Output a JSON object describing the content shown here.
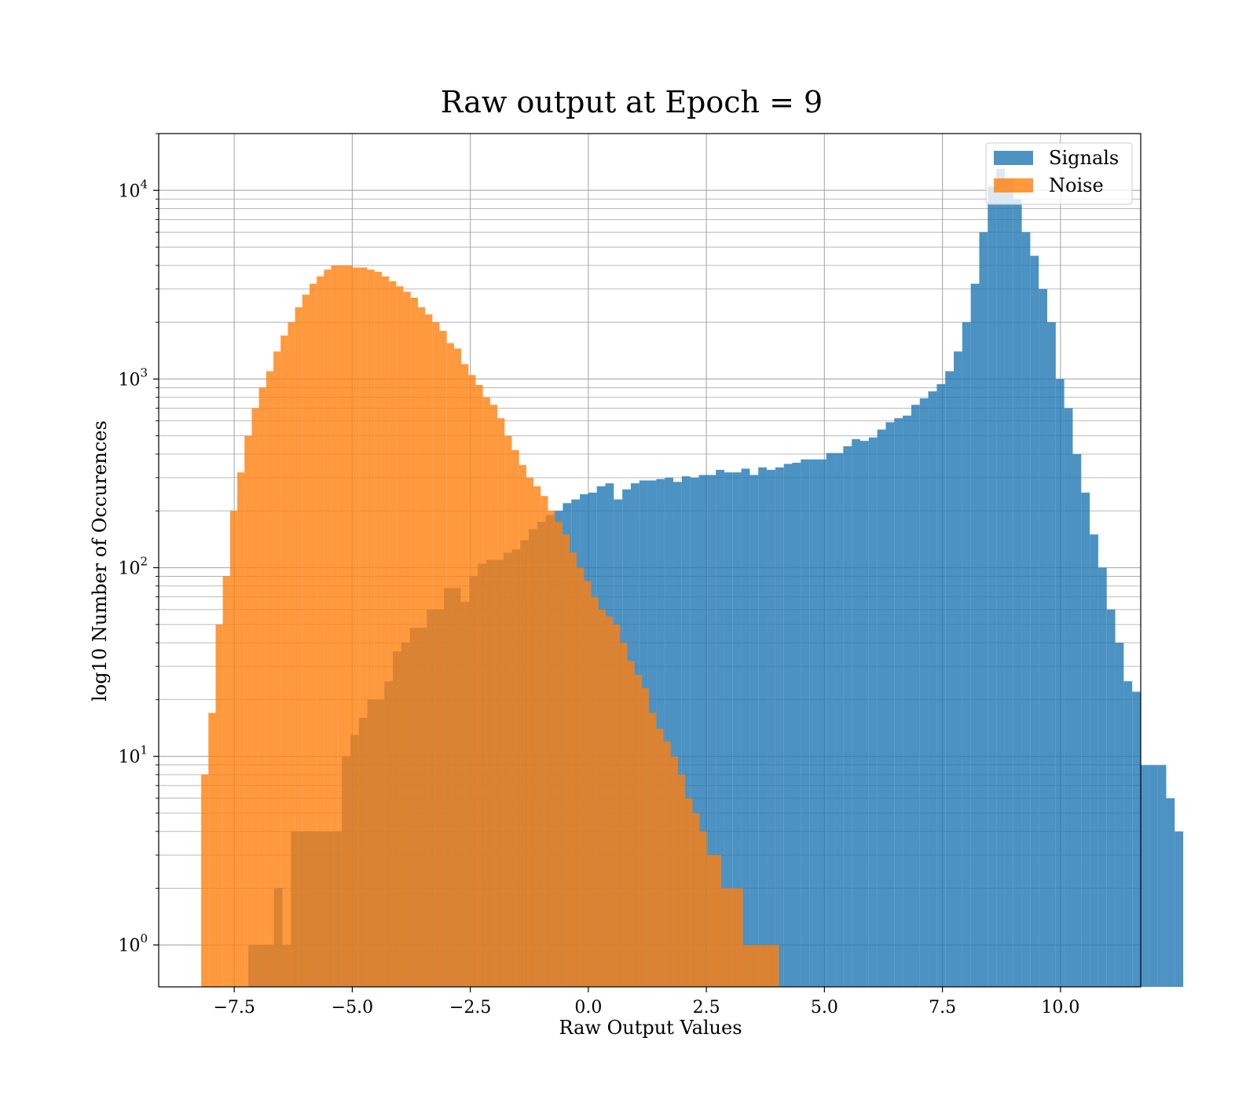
{
  "chart_data": {
    "type": "bar",
    "title": "Raw output at Epoch = 9",
    "xlabel": "Raw Output Values",
    "ylabel": "log10 Number of Occurences",
    "xlim": [
      -9.1,
      11.7
    ],
    "ylim": [
      0.6,
      20000
    ],
    "y_scale": "log",
    "grid": true,
    "legend_position": "top-right",
    "x_ticks": [
      {
        "value": -7.5,
        "label": "−7.5"
      },
      {
        "value": -5.0,
        "label": "−5.0"
      },
      {
        "value": -2.5,
        "label": "−2.5"
      },
      {
        "value": 0.0,
        "label": "0.0"
      },
      {
        "value": 2.5,
        "label": "2.5"
      },
      {
        "value": 5.0,
        "label": "5.0"
      },
      {
        "value": 7.5,
        "label": "7.5"
      },
      {
        "value": 10.0,
        "label": "10.0"
      }
    ],
    "y_ticks": [
      {
        "value": 1,
        "base": "10",
        "exp": "0"
      },
      {
        "value": 10,
        "base": "10",
        "exp": "1"
      },
      {
        "value": 100,
        "base": "10",
        "exp": "2"
      },
      {
        "value": 1000,
        "base": "10",
        "exp": "3"
      },
      {
        "value": 10000,
        "base": "10",
        "exp": "4"
      }
    ],
    "series": [
      {
        "name": "Signals",
        "color": "#1f77b4",
        "alpha": 0.8,
        "bin_start": -7.2,
        "bin_width": 0.18,
        "values": [
          1,
          1,
          1,
          2,
          1,
          4,
          4,
          4,
          4,
          4,
          4,
          10,
          13,
          16,
          20,
          20,
          25,
          36,
          40,
          48,
          48,
          60,
          60,
          78,
          78,
          66,
          90,
          105,
          110,
          110,
          120,
          125,
          140,
          160,
          175,
          190,
          200,
          220,
          230,
          245,
          250,
          270,
          280,
          230,
          260,
          280,
          290,
          290,
          295,
          300,
          285,
          305,
          300,
          310,
          310,
          330,
          320,
          320,
          335,
          310,
          340,
          330,
          340,
          355,
          360,
          375,
          375,
          375,
          405,
          405,
          440,
          480,
          470,
          490,
          540,
          590,
          620,
          640,
          730,
          790,
          860,
          940,
          1100,
          1400,
          2000,
          3200,
          6000,
          10500,
          13000,
          11500,
          9000,
          6000,
          4500,
          3000,
          2000,
          1000,
          700,
          400,
          250,
          150,
          100,
          60,
          40,
          25,
          22,
          9,
          9,
          9,
          6,
          4
        ]
      },
      {
        "name": "Noise",
        "color": "#ff7f0e",
        "alpha": 0.8,
        "bin_start": -8.2,
        "bin_width": 0.153,
        "values": [
          8,
          17,
          50,
          90,
          200,
          320,
          500,
          700,
          900,
          1100,
          1400,
          1700,
          2000,
          2400,
          2800,
          3200,
          3500,
          3800,
          4000,
          4000,
          4000,
          3900,
          3900,
          3800,
          3700,
          3500,
          3300,
          3100,
          2900,
          2700,
          2400,
          2200,
          2000,
          1800,
          1550,
          1450,
          1200,
          1050,
          930,
          800,
          730,
          620,
          500,
          420,
          350,
          300,
          270,
          240,
          200,
          175,
          150,
          120,
          100,
          85,
          70,
          60,
          55,
          50,
          40,
          32,
          27,
          23,
          17,
          14,
          12,
          10,
          8,
          6,
          5,
          4,
          3,
          3,
          2,
          2,
          2,
          1,
          1,
          1,
          1,
          1
        ]
      }
    ]
  }
}
